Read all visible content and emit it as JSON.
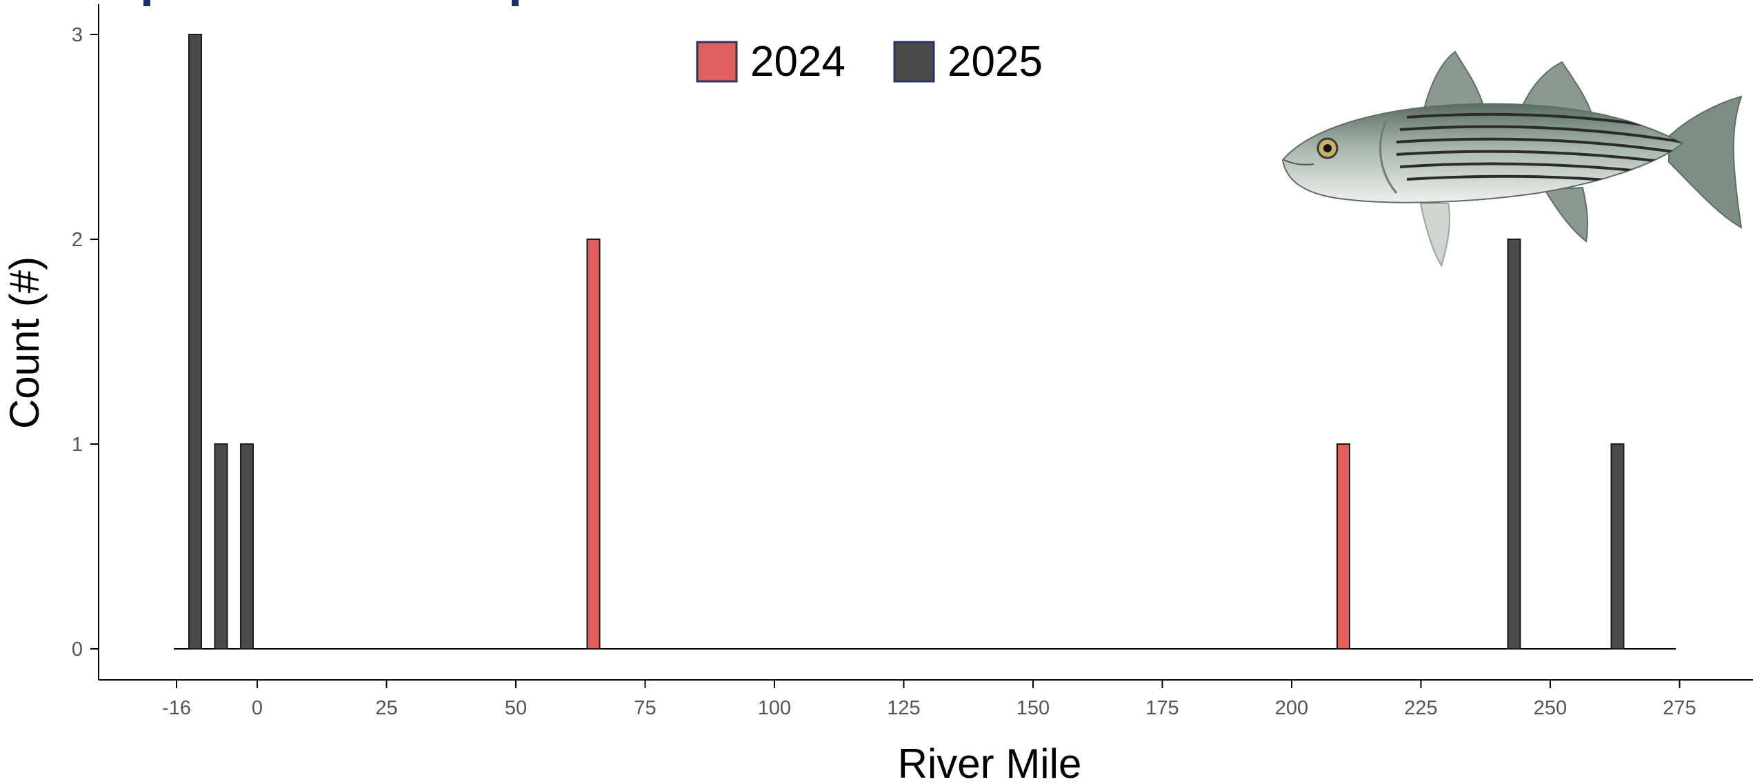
{
  "chart_data": {
    "type": "bar",
    "xlabel": "River Mile",
    "ylabel": "Count (#)",
    "x_ticks": [
      "-16",
      "0",
      "25",
      "50",
      "75",
      "100",
      "125",
      "150",
      "175",
      "200",
      "225",
      "250",
      "275"
    ],
    "x_tick_values": [
      -16,
      0,
      25,
      50,
      75,
      100,
      125,
      150,
      175,
      200,
      225,
      250,
      275
    ],
    "xlim": [
      -16,
      273
    ],
    "y_ticks": [
      "0",
      "1",
      "2",
      "3"
    ],
    "ylim": [
      0,
      3
    ],
    "grid": false,
    "legend_position": "top-center",
    "series": [
      {
        "name": "2024",
        "color": "#E06060",
        "points": [
          {
            "x": 65,
            "y": 2
          },
          {
            "x": 210,
            "y": 1
          }
        ]
      },
      {
        "name": "2025",
        "color": "#4A4A4A",
        "points": [
          {
            "x": -12,
            "y": 3
          },
          {
            "x": -7,
            "y": 1
          },
          {
            "x": -2,
            "y": 1
          },
          {
            "x": 243,
            "y": 2
          },
          {
            "x": 263,
            "y": 1
          }
        ]
      }
    ],
    "decoration": "striped-bass-illustration"
  }
}
